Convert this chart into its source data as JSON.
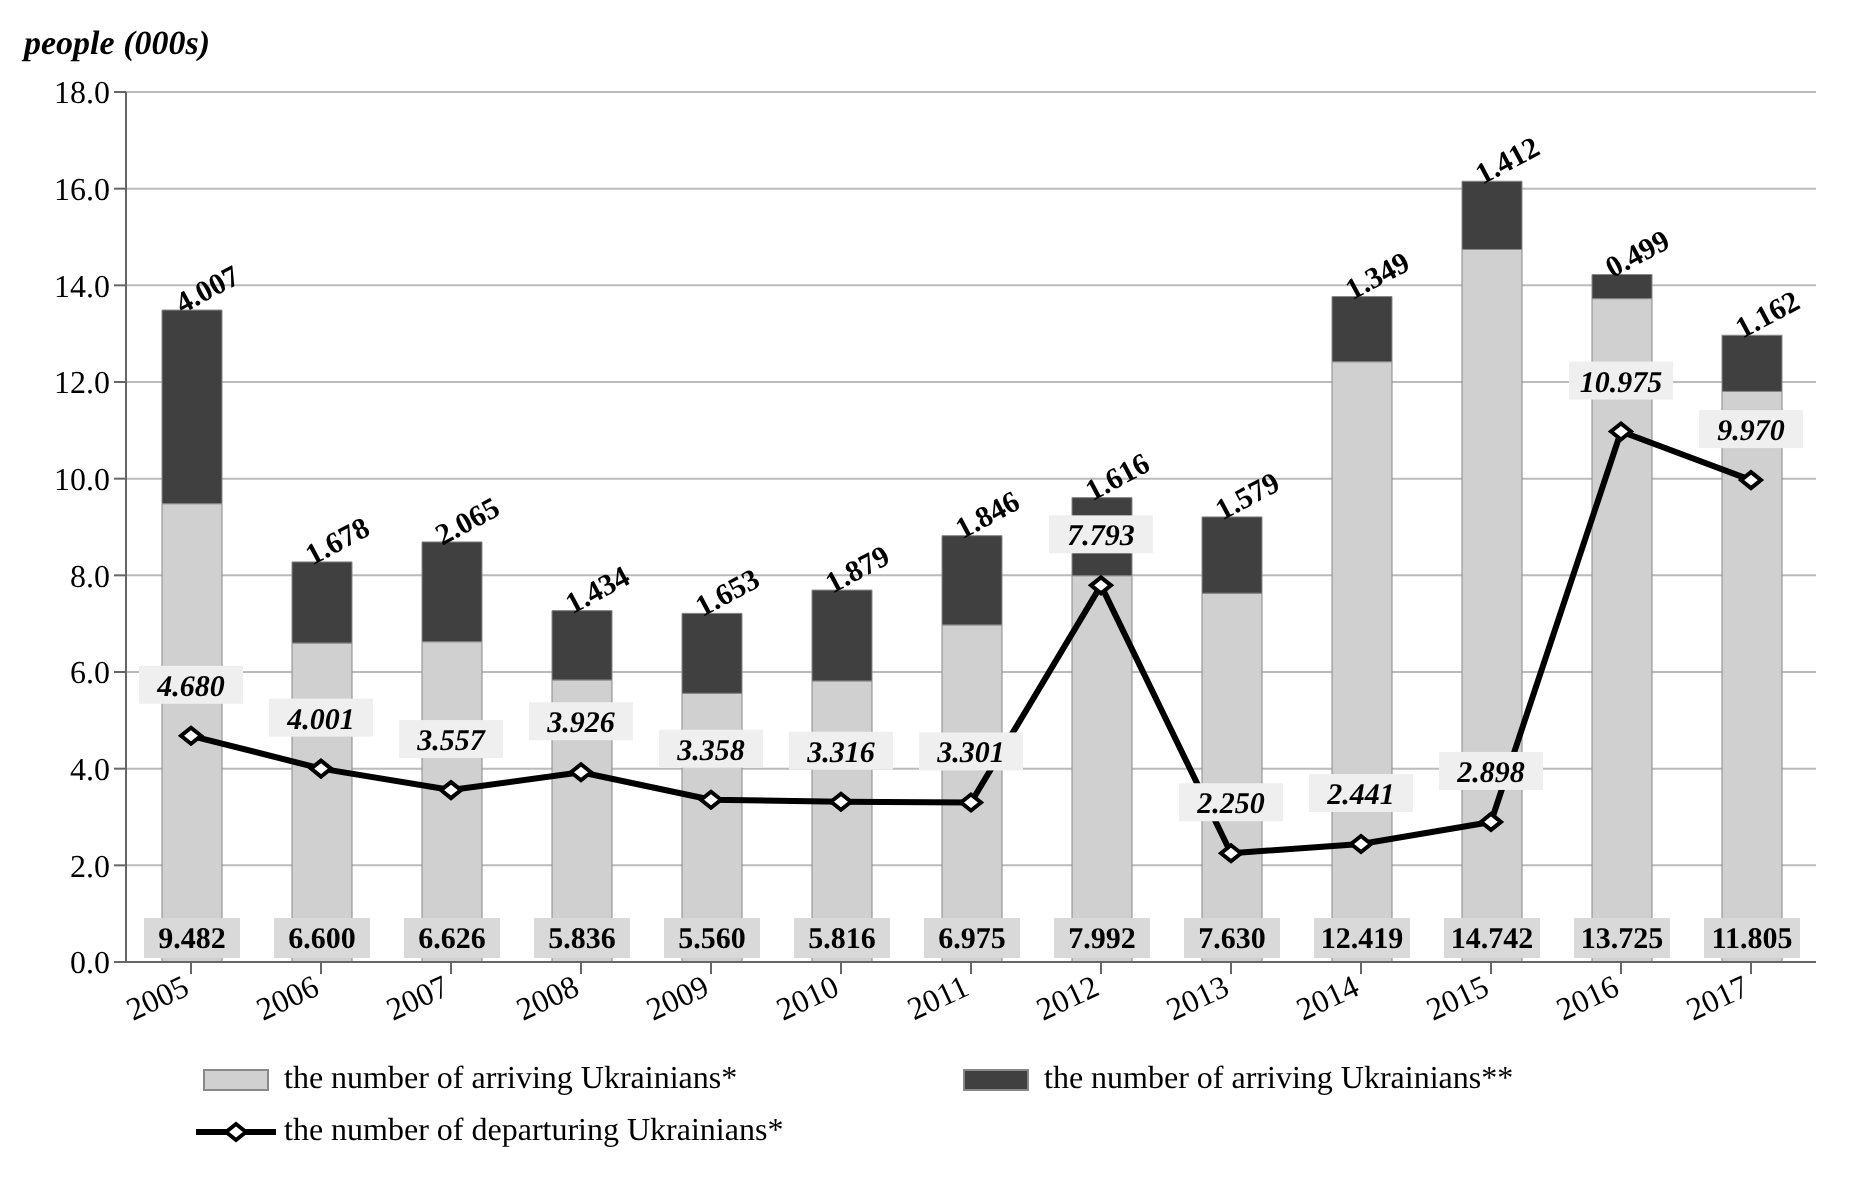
{
  "chart_data": {
    "type": "bar",
    "stacked": true,
    "ylabel": "people (000s)",
    "categories": [
      "2005",
      "2006",
      "2007",
      "2008",
      "2009",
      "2010",
      "2011",
      "2012",
      "2013",
      "2014",
      "2015",
      "2016",
      "2017"
    ],
    "series": [
      {
        "name": "the number of arriving Ukrainians*",
        "color": "#d0d0d0",
        "values": [
          9.482,
          6.6,
          6.626,
          5.836,
          5.56,
          5.816,
          6.975,
          7.992,
          7.63,
          12.419,
          14.742,
          13.725,
          11.805
        ],
        "value_labels": [
          "9.482",
          "6.600",
          "6.626",
          "5.836",
          "5.560",
          "5.816",
          "6.975",
          "7.992",
          "7.630",
          "12.419",
          "14.742",
          "13.725",
          "11.805"
        ]
      },
      {
        "name": "the number of arriving Ukrainians**",
        "color": "#404040",
        "values": [
          4.007,
          1.678,
          2.065,
          1.434,
          1.653,
          1.879,
          1.846,
          1.616,
          1.579,
          1.349,
          1.412,
          0.499,
          1.162
        ],
        "value_labels": [
          "4.007",
          "1.678",
          "2.065",
          "1.434",
          "1.653",
          "1.879",
          "1.846",
          "1.616",
          "1.579",
          "1.349",
          "1.412",
          "0.499",
          "1.162"
        ]
      },
      {
        "type": "line",
        "name": "the number of departuring Ukrainians*",
        "color": "#000000",
        "marker": "diamond",
        "values": [
          4.68,
          4.001,
          3.557,
          3.926,
          3.358,
          3.316,
          3.301,
          7.793,
          2.25,
          2.441,
          2.898,
          10.975,
          9.97
        ],
        "value_labels": [
          "4.680",
          "4.001",
          "3.557",
          "3.926",
          "3.358",
          "3.316",
          "3.301",
          "7.793",
          "2.250",
          "2.441",
          "2.898",
          "10.975",
          "9.970"
        ]
      }
    ],
    "ylim": [
      0,
      18
    ],
    "yticks": [
      {
        "value": 0,
        "label": "0.0"
      },
      {
        "value": 2,
        "label": "2.0"
      },
      {
        "value": 4,
        "label": "4.0"
      },
      {
        "value": 6,
        "label": "6.0"
      },
      {
        "value": 8,
        "label": "8.0"
      },
      {
        "value": 10,
        "label": "10.0"
      },
      {
        "value": 12,
        "label": "12.0"
      },
      {
        "value": 14,
        "label": "14.0"
      },
      {
        "value": 16,
        "label": "16.0"
      },
      {
        "value": 18,
        "label": "18.0"
      }
    ],
    "grid": "y",
    "legend": "bottom"
  }
}
